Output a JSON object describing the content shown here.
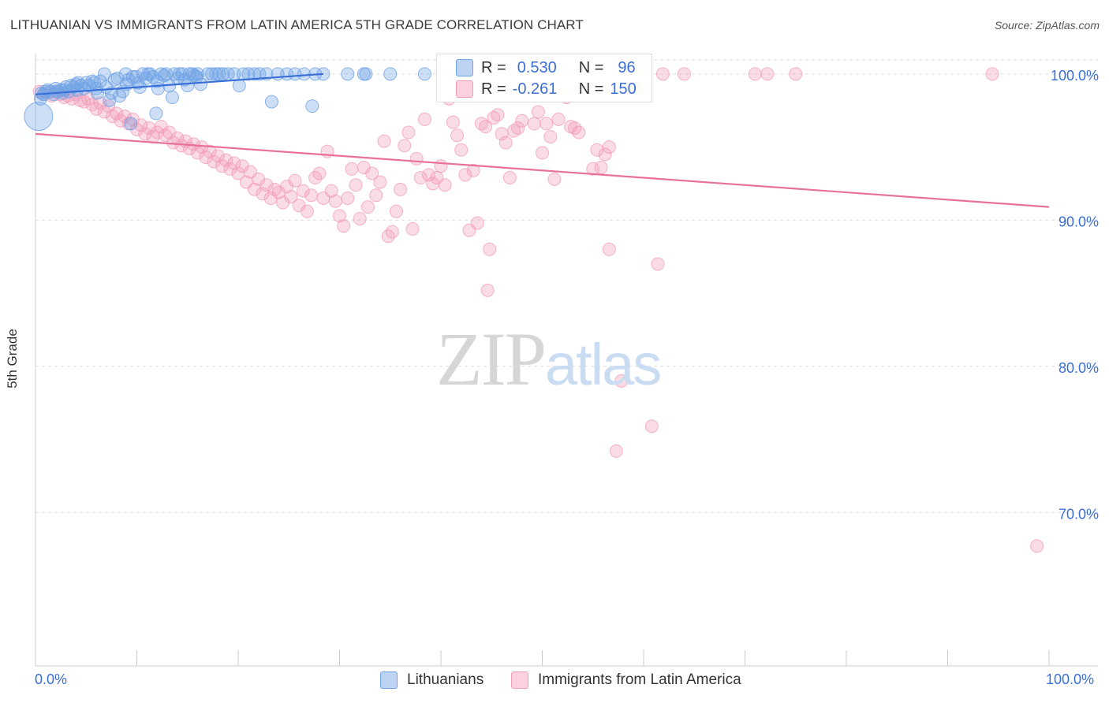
{
  "title": "LITHUANIAN VS IMMIGRANTS FROM LATIN AMERICA 5TH GRADE CORRELATION CHART",
  "source": "Source: ZipAtlas.com",
  "watermark": {
    "zip": "ZIP",
    "atlas": "atlas"
  },
  "legend": {
    "r_label": "R =",
    "n_label": "N =",
    "rows": [
      {
        "r": "0.530",
        "n": "96"
      },
      {
        "r": "-0.261",
        "n": "150"
      }
    ]
  },
  "colors": {
    "blue": "#6fa3e6",
    "blue_line": "#3a6fd8",
    "pink": "#f29bb8",
    "pink_line": "#e8709a",
    "tick_text": "#3a6fd8"
  },
  "chart_data": {
    "type": "scatter",
    "title": "LITHUANIAN VS IMMIGRANTS FROM LATIN AMERICA 5TH GRADE CORRELATION CHART",
    "xlabel": "",
    "ylabel": "5th Grade",
    "xlim": [
      0,
      100
    ],
    "ylim": [
      59.5,
      100.8
    ],
    "x_tick_labels": [
      "0.0%",
      "100.0%"
    ],
    "y_ticks": [
      70,
      80,
      90,
      100
    ],
    "y_tick_labels": [
      "70.0%",
      "80.0%",
      "90.0%",
      "100.0%"
    ],
    "grid": true,
    "legend_position": "bottom",
    "series": [
      {
        "name": "Lithuanians",
        "r": 0.53,
        "n": 96,
        "trend": {
          "x": [
            0,
            28.4
          ],
          "y": [
            98.6,
            100.0
          ]
        },
        "points": [
          [
            0.3,
            97.1
          ],
          [
            0.5,
            98.3
          ],
          [
            0.6,
            98.7
          ],
          [
            0.8,
            98.6
          ],
          [
            1.2,
            98.9
          ],
          [
            1.5,
            98.8
          ],
          [
            1.8,
            98.6
          ],
          [
            2.0,
            99.0
          ],
          [
            2.2,
            98.8
          ],
          [
            2.5,
            98.9
          ],
          [
            2.8,
            98.9
          ],
          [
            3.0,
            99.1
          ],
          [
            3.3,
            98.8
          ],
          [
            3.5,
            99.2
          ],
          [
            3.8,
            99.1
          ],
          [
            4.0,
            99.3
          ],
          [
            4.2,
            99.4
          ],
          [
            4.5,
            99.2
          ],
          [
            4.8,
            99.0
          ],
          [
            5.0,
            99.4
          ],
          [
            5.3,
            99.2
          ],
          [
            5.6,
            99.5
          ],
          [
            5.8,
            99.4
          ],
          [
            6.1,
            98.7
          ],
          [
            6.4,
            99.5
          ],
          [
            6.8,
            100.0
          ],
          [
            7.0,
            99.1
          ],
          [
            7.3,
            98.2
          ],
          [
            7.5,
            98.7
          ],
          [
            7.8,
            99.6
          ],
          [
            8.1,
            99.7
          ],
          [
            8.3,
            98.5
          ],
          [
            8.6,
            98.8
          ],
          [
            8.9,
            100.0
          ],
          [
            9.2,
            99.6
          ],
          [
            9.4,
            96.6
          ],
          [
            9.6,
            99.8
          ],
          [
            9.9,
            99.8
          ],
          [
            10.1,
            99.4
          ],
          [
            10.3,
            99.1
          ],
          [
            10.6,
            100.0
          ],
          [
            10.9,
            99.7
          ],
          [
            11.1,
            100.0
          ],
          [
            11.3,
            100.0
          ],
          [
            11.6,
            99.8
          ],
          [
            11.9,
            97.3
          ],
          [
            12.1,
            99.0
          ],
          [
            12.4,
            100.0
          ],
          [
            12.7,
            99.9
          ],
          [
            12.9,
            100.0
          ],
          [
            13.2,
            99.2
          ],
          [
            13.5,
            98.4
          ],
          [
            13.7,
            100.0
          ],
          [
            14.0,
            99.7
          ],
          [
            14.2,
            100.0
          ],
          [
            14.5,
            100.0
          ],
          [
            14.7,
            99.6
          ],
          [
            15.0,
            99.2
          ],
          [
            15.2,
            100.0
          ],
          [
            15.5,
            100.0
          ],
          [
            15.7,
            99.9
          ],
          [
            16.0,
            100.0
          ],
          [
            16.3,
            99.3
          ],
          [
            17.0,
            100.0
          ],
          [
            17.4,
            100.0
          ],
          [
            17.8,
            100.0
          ],
          [
            18.1,
            100.0
          ],
          [
            18.5,
            100.0
          ],
          [
            19.0,
            100.0
          ],
          [
            19.6,
            100.0
          ],
          [
            20.1,
            99.2
          ],
          [
            20.5,
            100.0
          ],
          [
            21.0,
            100.0
          ],
          [
            21.6,
            100.0
          ],
          [
            22.1,
            100.0
          ],
          [
            22.8,
            100.0
          ],
          [
            23.3,
            98.1
          ],
          [
            23.9,
            100.0
          ],
          [
            24.8,
            100.0
          ],
          [
            25.6,
            100.0
          ],
          [
            26.5,
            100.0
          ],
          [
            27.3,
            97.8
          ],
          [
            27.6,
            100.0
          ],
          [
            28.4,
            100.0
          ],
          [
            30.8,
            100.0
          ],
          [
            32.4,
            100.0
          ],
          [
            32.6,
            100.0
          ],
          [
            35.0,
            100.0
          ],
          [
            38.4,
            100.0
          ],
          [
            1.0,
            98.8
          ],
          [
            2.7,
            98.7
          ],
          [
            4.1,
            98.9
          ],
          [
            6.0,
            99.0
          ],
          [
            9.0,
            99.3
          ],
          [
            12.0,
            99.5
          ],
          [
            15.9,
            99.8
          ]
        ]
      },
      {
        "name": "Immigrants from Latin America",
        "r": -0.261,
        "n": 150,
        "trend": {
          "x": [
            0,
            100
          ],
          "y": [
            95.9,
            90.9
          ]
        },
        "points": [
          [
            0.4,
            98.8
          ],
          [
            0.8,
            98.6
          ],
          [
            1.2,
            98.7
          ],
          [
            1.6,
            98.5
          ],
          [
            2.0,
            98.8
          ],
          [
            2.4,
            98.6
          ],
          [
            2.8,
            98.4
          ],
          [
            3.2,
            98.5
          ],
          [
            3.6,
            98.3
          ],
          [
            4.0,
            98.6
          ],
          [
            4.4,
            98.2
          ],
          [
            4.8,
            98.1
          ],
          [
            5.2,
            98.3
          ],
          [
            5.6,
            97.9
          ],
          [
            6.0,
            97.6
          ],
          [
            6.4,
            98.0
          ],
          [
            6.8,
            97.4
          ],
          [
            7.2,
            97.8
          ],
          [
            7.6,
            97.1
          ],
          [
            8.0,
            97.3
          ],
          [
            8.4,
            96.8
          ],
          [
            8.8,
            97.1
          ],
          [
            9.2,
            96.6
          ],
          [
            9.6,
            96.9
          ],
          [
            10.0,
            96.2
          ],
          [
            10.4,
            96.5
          ],
          [
            10.8,
            95.9
          ],
          [
            11.2,
            96.3
          ],
          [
            11.6,
            95.7
          ],
          [
            12.0,
            96.0
          ],
          [
            12.4,
            96.4
          ],
          [
            12.8,
            95.8
          ],
          [
            13.2,
            96.0
          ],
          [
            13.6,
            95.3
          ],
          [
            14.0,
            95.6
          ],
          [
            14.4,
            95.1
          ],
          [
            14.8,
            95.4
          ],
          [
            15.2,
            94.9
          ],
          [
            15.6,
            95.2
          ],
          [
            16.0,
            94.6
          ],
          [
            16.4,
            95.0
          ],
          [
            16.8,
            94.3
          ],
          [
            17.2,
            94.7
          ],
          [
            17.6,
            94.0
          ],
          [
            18.0,
            94.4
          ],
          [
            18.4,
            93.7
          ],
          [
            18.8,
            94.1
          ],
          [
            19.2,
            93.5
          ],
          [
            19.6,
            93.9
          ],
          [
            20.0,
            93.2
          ],
          [
            20.4,
            93.7
          ],
          [
            20.8,
            92.6
          ],
          [
            21.2,
            93.3
          ],
          [
            21.6,
            92.1
          ],
          [
            22.0,
            92.8
          ],
          [
            22.4,
            91.8
          ],
          [
            22.8,
            92.4
          ],
          [
            23.2,
            91.5
          ],
          [
            23.6,
            92.1
          ],
          [
            24.0,
            91.9
          ],
          [
            24.4,
            91.2
          ],
          [
            24.8,
            92.3
          ],
          [
            25.2,
            91.6
          ],
          [
            25.6,
            92.7
          ],
          [
            26.0,
            91.0
          ],
          [
            26.4,
            92.0
          ],
          [
            26.8,
            90.6
          ],
          [
            27.2,
            91.7
          ],
          [
            27.6,
            92.9
          ],
          [
            28.0,
            93.2
          ],
          [
            28.4,
            91.5
          ],
          [
            28.8,
            94.7
          ],
          [
            29.2,
            92.0
          ],
          [
            29.6,
            91.3
          ],
          [
            30.0,
            90.3
          ],
          [
            30.4,
            89.6
          ],
          [
            30.8,
            91.5
          ],
          [
            31.2,
            93.5
          ],
          [
            31.6,
            92.4
          ],
          [
            32.0,
            90.1
          ],
          [
            32.4,
            93.6
          ],
          [
            32.8,
            90.9
          ],
          [
            33.2,
            93.2
          ],
          [
            33.6,
            91.7
          ],
          [
            34.0,
            92.6
          ],
          [
            34.4,
            95.4
          ],
          [
            34.8,
            88.9
          ],
          [
            35.2,
            89.2
          ],
          [
            35.6,
            90.6
          ],
          [
            36.0,
            92.1
          ],
          [
            36.4,
            95.1
          ],
          [
            36.8,
            96.0
          ],
          [
            37.2,
            89.4
          ],
          [
            37.6,
            94.2
          ],
          [
            38.0,
            92.9
          ],
          [
            38.4,
            96.9
          ],
          [
            38.8,
            93.1
          ],
          [
            39.2,
            92.5
          ],
          [
            39.6,
            92.9
          ],
          [
            40.0,
            93.7
          ],
          [
            40.4,
            92.4
          ],
          [
            40.8,
            98.3
          ],
          [
            41.2,
            96.7
          ],
          [
            41.6,
            95.8
          ],
          [
            42.0,
            94.8
          ],
          [
            42.4,
            93.1
          ],
          [
            42.8,
            89.3
          ],
          [
            43.2,
            93.4
          ],
          [
            43.6,
            89.8
          ],
          [
            44.0,
            96.6
          ],
          [
            44.4,
            96.4
          ],
          [
            44.8,
            88.0
          ],
          [
            45.2,
            97.0
          ],
          [
            45.6,
            97.2
          ],
          [
            46.0,
            95.9
          ],
          [
            46.4,
            95.3
          ],
          [
            46.8,
            92.9
          ],
          [
            47.2,
            96.1
          ],
          [
            47.6,
            96.3
          ],
          [
            48.0,
            96.8
          ],
          [
            48.4,
            100.0
          ],
          [
            49.2,
            96.6
          ],
          [
            49.6,
            97.4
          ],
          [
            50.0,
            94.6
          ],
          [
            50.4,
            96.6
          ],
          [
            50.8,
            95.7
          ],
          [
            51.2,
            92.8
          ],
          [
            51.6,
            96.9
          ],
          [
            52.0,
            100.0
          ],
          [
            52.4,
            98.4
          ],
          [
            52.8,
            96.4
          ],
          [
            53.2,
            96.3
          ],
          [
            53.6,
            96.0
          ],
          [
            55.0,
            93.5
          ],
          [
            55.4,
            94.8
          ],
          [
            55.8,
            93.6
          ],
          [
            56.2,
            94.5
          ],
          [
            56.6,
            95.0
          ],
          [
            61.4,
            87.0
          ],
          [
            61.9,
            100.0
          ],
          [
            64.0,
            100.0
          ],
          [
            71.0,
            100.0
          ],
          [
            72.2,
            100.0
          ],
          [
            75.0,
            100.0
          ],
          [
            94.4,
            100.0
          ],
          [
            57.8,
            79.0
          ],
          [
            60.8,
            75.9
          ],
          [
            57.3,
            74.2
          ],
          [
            98.8,
            67.7
          ],
          [
            44.6,
            85.2
          ],
          [
            56.6,
            88.0
          ]
        ]
      }
    ]
  }
}
